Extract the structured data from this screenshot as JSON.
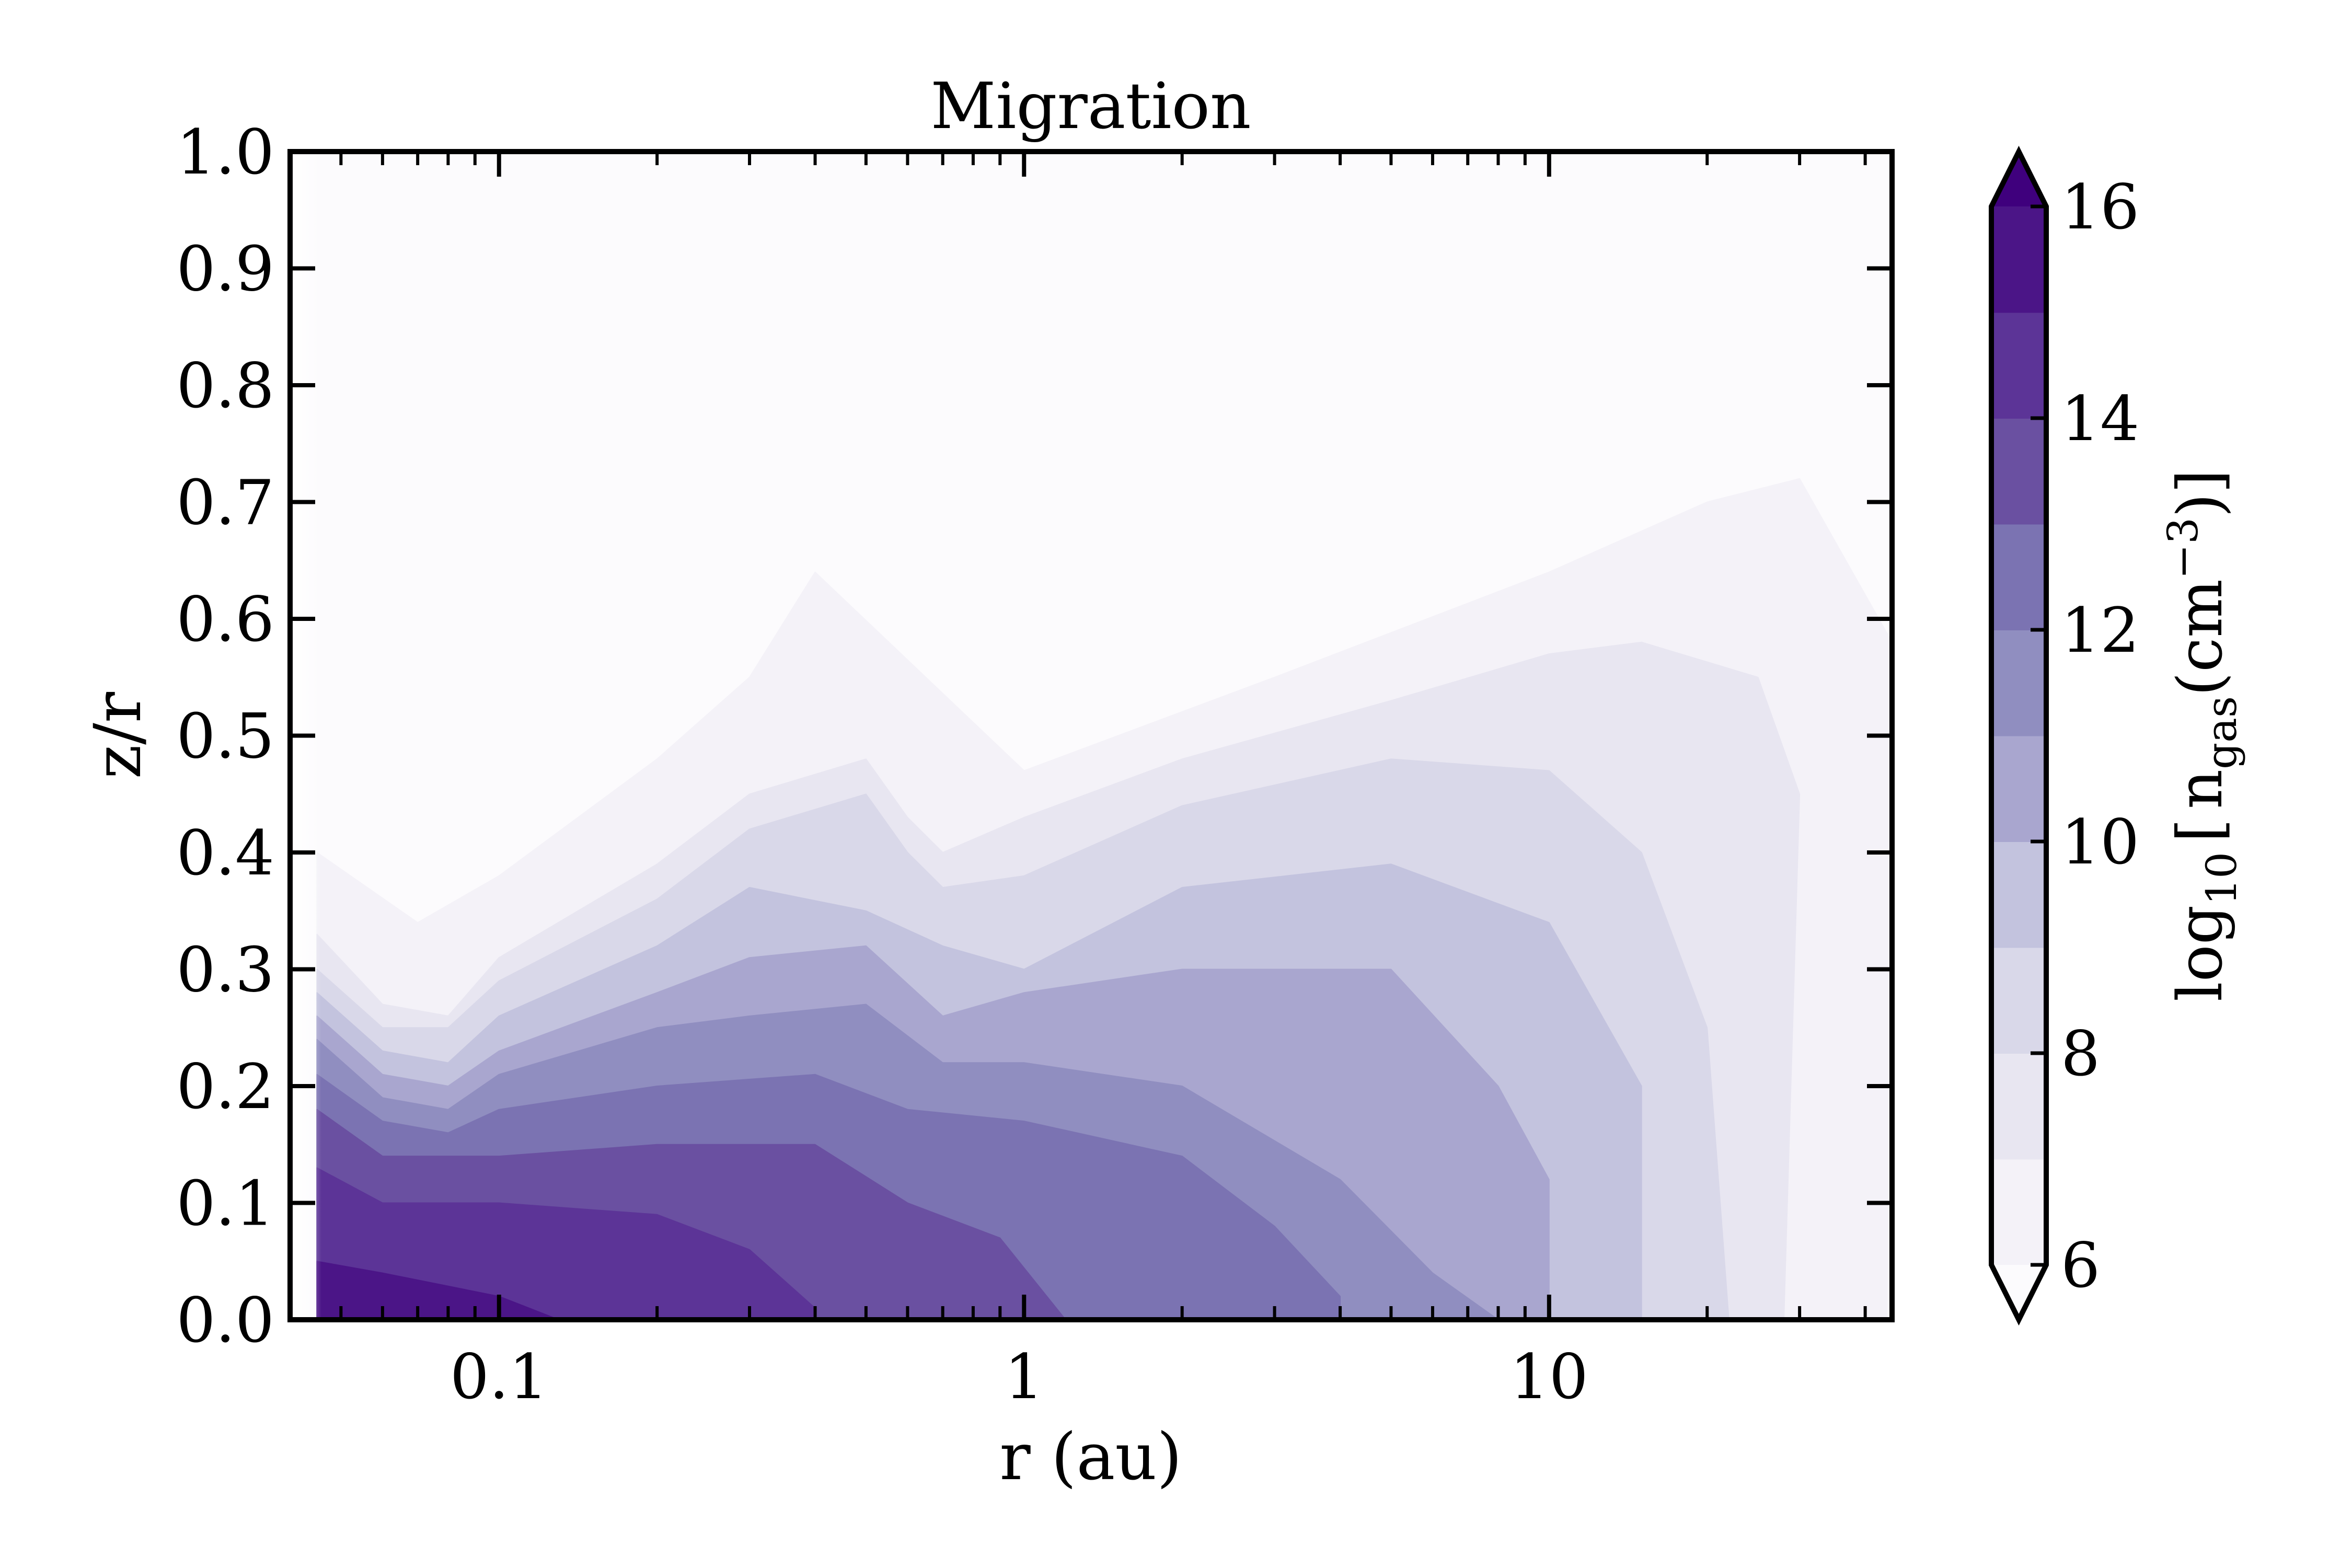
{
  "chart_data": {
    "type": "heatmap",
    "title": "Migration",
    "xlabel": "r (au)",
    "ylabel": "z/r",
    "xscale": "log",
    "xlim": [
      0.04,
      45
    ],
    "ylim": [
      0.0,
      1.0
    ],
    "x_ticks": [
      {
        "value": 0.1,
        "label": "0.1"
      },
      {
        "value": 1,
        "label": "1"
      },
      {
        "value": 10,
        "label": "10"
      }
    ],
    "y_ticks": [
      {
        "value": 0.0,
        "label": "0.0"
      },
      {
        "value": 0.1,
        "label": "0.1"
      },
      {
        "value": 0.2,
        "label": "0.2"
      },
      {
        "value": 0.3,
        "label": "0.3"
      },
      {
        "value": 0.4,
        "label": "0.4"
      },
      {
        "value": 0.5,
        "label": "0.5"
      },
      {
        "value": 0.6,
        "label": "0.6"
      },
      {
        "value": 0.7,
        "label": "0.7"
      },
      {
        "value": 0.8,
        "label": "0.8"
      },
      {
        "value": 0.9,
        "label": "0.9"
      },
      {
        "value": 1.0,
        "label": "1.0"
      }
    ],
    "colorbar": {
      "label_main": "log",
      "label_sub10": "10",
      "label_bracket_open": "[",
      "label_n": "n",
      "label_sub_gas": "gas",
      "label_unit": "(cm",
      "label_sup": "−3",
      "label_close": ")]",
      "range": [
        6,
        16
      ],
      "extend": "both",
      "tick_values": [
        6,
        8,
        10,
        12,
        14,
        16
      ],
      "tick_labels": [
        "6",
        "8",
        "10",
        "12",
        "14",
        "16"
      ],
      "levels": [
        6,
        7,
        8,
        9,
        10,
        11,
        12,
        13,
        14,
        15,
        16
      ],
      "colors": [
        "#f4f2f8",
        "#e8e6f1",
        "#d9d8e9",
        "#c3c3de",
        "#a9a6cf",
        "#908ec0",
        "#7b73b2",
        "#6a50a1",
        "#5c3497",
        "#4b1587"
      ],
      "over_color": "#3f007d",
      "under_color": "#fcfbfd"
    },
    "contours": [
      {
        "level": 7,
        "top": [
          [
            0.045,
            0.4
          ],
          [
            0.07,
            0.34
          ],
          [
            0.1,
            0.38
          ],
          [
            0.2,
            0.48
          ],
          [
            0.3,
            0.55
          ],
          [
            0.4,
            0.64
          ],
          [
            1,
            0.47
          ],
          [
            3,
            0.55
          ],
          [
            10,
            0.64
          ],
          [
            20,
            0.7
          ],
          [
            30,
            0.72
          ],
          [
            45,
            0.58
          ]
        ],
        "right_edge": 44
      },
      {
        "level": 8,
        "top": [
          [
            0.045,
            0.33
          ],
          [
            0.06,
            0.27
          ],
          [
            0.08,
            0.26
          ],
          [
            0.1,
            0.31
          ],
          [
            0.2,
            0.39
          ],
          [
            0.3,
            0.45
          ],
          [
            0.5,
            0.48
          ],
          [
            0.6,
            0.43
          ],
          [
            0.7,
            0.4
          ],
          [
            1,
            0.43
          ],
          [
            2,
            0.48
          ],
          [
            5,
            0.53
          ],
          [
            10,
            0.57
          ],
          [
            15,
            0.58
          ],
          [
            25,
            0.55
          ],
          [
            30,
            0.45
          ]
        ],
        "right_edge": 28
      },
      {
        "level": 9,
        "top": [
          [
            0.045,
            0.3
          ],
          [
            0.06,
            0.25
          ],
          [
            0.08,
            0.25
          ],
          [
            0.1,
            0.29
          ],
          [
            0.2,
            0.36
          ],
          [
            0.3,
            0.42
          ],
          [
            0.5,
            0.45
          ],
          [
            0.6,
            0.4
          ],
          [
            0.7,
            0.37
          ],
          [
            1,
            0.38
          ],
          [
            2,
            0.44
          ],
          [
            5,
            0.48
          ],
          [
            10,
            0.47
          ],
          [
            15,
            0.4
          ],
          [
            20,
            0.25
          ]
        ],
        "right_edge": 22
      },
      {
        "level": 10,
        "top": [
          [
            0.045,
            0.28
          ],
          [
            0.06,
            0.23
          ],
          [
            0.08,
            0.22
          ],
          [
            0.1,
            0.26
          ],
          [
            0.2,
            0.32
          ],
          [
            0.3,
            0.37
          ],
          [
            0.5,
            0.35
          ],
          [
            0.7,
            0.32
          ],
          [
            1,
            0.3
          ],
          [
            2,
            0.37
          ],
          [
            5,
            0.39
          ],
          [
            10,
            0.34
          ],
          [
            15,
            0.2
          ]
        ],
        "right_edge": 15
      },
      {
        "level": 11,
        "top": [
          [
            0.045,
            0.26
          ],
          [
            0.06,
            0.21
          ],
          [
            0.08,
            0.2
          ],
          [
            0.1,
            0.23
          ],
          [
            0.2,
            0.28
          ],
          [
            0.3,
            0.31
          ],
          [
            0.5,
            0.32
          ],
          [
            0.7,
            0.26
          ],
          [
            1,
            0.28
          ],
          [
            2,
            0.3
          ],
          [
            5,
            0.3
          ],
          [
            8,
            0.2
          ],
          [
            10,
            0.12
          ]
        ],
        "right_edge": 10
      },
      {
        "level": 12,
        "top": [
          [
            0.045,
            0.24
          ],
          [
            0.06,
            0.19
          ],
          [
            0.08,
            0.18
          ],
          [
            0.1,
            0.21
          ],
          [
            0.2,
            0.25
          ],
          [
            0.3,
            0.26
          ],
          [
            0.5,
            0.27
          ],
          [
            0.7,
            0.22
          ],
          [
            1,
            0.22
          ],
          [
            2,
            0.2
          ],
          [
            4,
            0.12
          ],
          [
            6,
            0.04
          ]
        ],
        "right_edge": 8
      },
      {
        "level": 13,
        "top": [
          [
            0.045,
            0.21
          ],
          [
            0.06,
            0.17
          ],
          [
            0.08,
            0.16
          ],
          [
            0.1,
            0.18
          ],
          [
            0.2,
            0.2
          ],
          [
            0.4,
            0.21
          ],
          [
            0.6,
            0.18
          ],
          [
            1,
            0.17
          ],
          [
            2,
            0.14
          ],
          [
            3,
            0.08
          ],
          [
            4,
            0.02
          ]
        ],
        "right_edge": 4
      },
      {
        "level": 14,
        "top": [
          [
            0.045,
            0.18
          ],
          [
            0.06,
            0.14
          ],
          [
            0.1,
            0.14
          ],
          [
            0.2,
            0.15
          ],
          [
            0.4,
            0.15
          ],
          [
            0.6,
            0.1
          ],
          [
            0.9,
            0.07
          ],
          [
            1.2,
            0.0
          ]
        ],
        "right_edge": 1.2
      },
      {
        "level": 15,
        "top": [
          [
            0.045,
            0.13
          ],
          [
            0.06,
            0.1
          ],
          [
            0.1,
            0.1
          ],
          [
            0.2,
            0.09
          ],
          [
            0.3,
            0.06
          ],
          [
            0.4,
            0.01
          ]
        ],
        "right_edge": 0.4
      },
      {
        "level": 16,
        "top": [
          [
            0.045,
            0.05
          ],
          [
            0.06,
            0.04
          ],
          [
            0.1,
            0.02
          ],
          [
            0.13,
            0.0
          ]
        ],
        "right_edge": 0.13
      }
    ]
  }
}
